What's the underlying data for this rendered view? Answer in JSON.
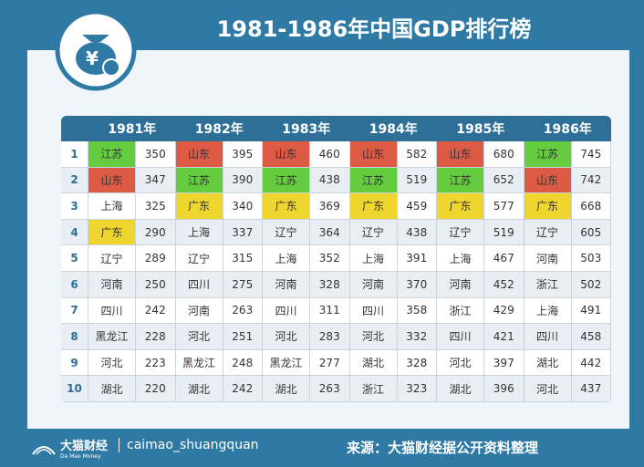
{
  "header": {
    "title": "1981-1986年中国GDP排行榜"
  },
  "table": {
    "years": [
      "1981年",
      "1982年",
      "1983年",
      "1984年",
      "1985年",
      "1986年"
    ],
    "ranks": [
      1,
      2,
      3,
      4,
      5,
      6,
      7,
      8,
      9,
      10
    ],
    "highlight_colors": {
      "江苏": "#66cc3f",
      "山东": "#dd5a45",
      "广东": "#efd62e"
    },
    "columns": [
      {
        "provinces": [
          "江苏",
          "山东",
          "上海",
          "广东",
          "辽宁",
          "河南",
          "四川",
          "黑龙江",
          "河北",
          "湖北"
        ],
        "values": [
          350,
          347,
          325,
          290,
          289,
          250,
          242,
          228,
          223,
          220
        ]
      },
      {
        "provinces": [
          "山东",
          "江苏",
          "广东",
          "上海",
          "辽宁",
          "四川",
          "河南",
          "河北",
          "黑龙江",
          "湖北"
        ],
        "values": [
          395,
          390,
          340,
          337,
          315,
          275,
          263,
          251,
          248,
          242
        ]
      },
      {
        "provinces": [
          "山东",
          "江苏",
          "广东",
          "辽宁",
          "上海",
          "河南",
          "四川",
          "河北",
          "黑龙江",
          "湖北"
        ],
        "values": [
          460,
          438,
          369,
          364,
          352,
          328,
          311,
          283,
          277,
          263
        ]
      },
      {
        "provinces": [
          "山东",
          "江苏",
          "广东",
          "辽宁",
          "上海",
          "河南",
          "四川",
          "河北",
          "湖北",
          "浙江"
        ],
        "values": [
          582,
          519,
          459,
          438,
          391,
          370,
          358,
          332,
          328,
          323
        ]
      },
      {
        "provinces": [
          "山东",
          "江苏",
          "广东",
          "辽宁",
          "上海",
          "河南",
          "浙江",
          "四川",
          "河北",
          "湖北"
        ],
        "values": [
          680,
          652,
          577,
          519,
          467,
          452,
          429,
          421,
          397,
          396
        ]
      },
      {
        "provinces": [
          "江苏",
          "山东",
          "广东",
          "辽宁",
          "河南",
          "浙江",
          "上海",
          "四川",
          "湖北",
          "河北"
        ],
        "values": [
          745,
          742,
          668,
          605,
          503,
          502,
          491,
          458,
          442,
          437
        ]
      }
    ]
  },
  "footer": {
    "brand": "大猫财经",
    "brand_en": "Da Mao Money",
    "account": "caimao_shuangquan",
    "source": "来源：大猫财经据公开资料整理"
  }
}
